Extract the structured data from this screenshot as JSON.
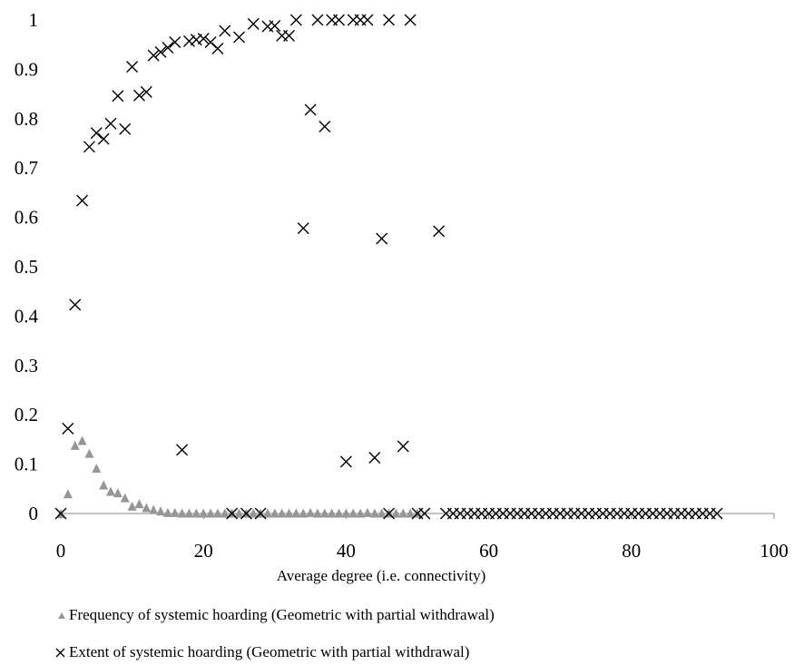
{
  "chart_data": {
    "type": "scatter",
    "xlabel": "Average degree (i.e. connectivity)",
    "ylabel": "",
    "xlim": [
      0,
      100
    ],
    "ylim": [
      0,
      1
    ],
    "x_ticks": [
      "0",
      "20",
      "40",
      "60",
      "80",
      "100"
    ],
    "y_ticks": [
      "0",
      "0.1",
      "0.2",
      "0.3",
      "0.4",
      "0.5",
      "0.6",
      "0.7",
      "0.8",
      "0.9",
      "1"
    ],
    "grid": false,
    "legend_position": "bottom",
    "series": [
      {
        "name": "Frequency of systemic hoarding (Geometric with partial withdrawal)",
        "marker": "triangle",
        "color": "#969696",
        "points": [
          [
            0,
            0
          ],
          [
            1,
            0.04
          ],
          [
            2,
            0.138
          ],
          [
            3,
            0.148
          ],
          [
            4,
            0.122
          ],
          [
            5,
            0.092
          ],
          [
            6,
            0.058
          ],
          [
            7,
            0.045
          ],
          [
            8,
            0.042
          ],
          [
            9,
            0.032
          ],
          [
            10,
            0.015
          ],
          [
            11,
            0.02
          ],
          [
            12,
            0.012
          ],
          [
            13,
            0.008
          ],
          [
            14,
            0.005
          ],
          [
            15,
            0.002
          ],
          [
            16,
            0.002
          ],
          [
            17,
            0.001
          ],
          [
            18,
            0.001
          ],
          [
            19,
            0.001
          ],
          [
            20,
            0.001
          ],
          [
            21,
            0.001
          ],
          [
            22,
            0.001
          ],
          [
            23,
            0.001
          ],
          [
            24,
            0.001
          ],
          [
            25,
            0.001
          ],
          [
            26,
            0.001
          ],
          [
            27,
            0.001
          ],
          [
            28,
            0.001
          ],
          [
            29,
            0.001
          ],
          [
            30,
            0.001
          ],
          [
            31,
            0.001
          ],
          [
            32,
            0.001
          ],
          [
            33,
            0.001
          ],
          [
            34,
            0.001
          ],
          [
            35,
            0.002
          ],
          [
            36,
            0.001
          ],
          [
            37,
            0.001
          ],
          [
            38,
            0.001
          ],
          [
            39,
            0.001
          ],
          [
            40,
            0.001
          ],
          [
            41,
            0.001
          ],
          [
            42,
            0.001
          ],
          [
            43,
            0.002
          ],
          [
            44,
            0.001
          ],
          [
            45,
            0.001
          ],
          [
            46,
            0.001
          ],
          [
            47,
            0.001
          ],
          [
            48,
            0.001
          ],
          [
            49,
            0.001
          ],
          [
            50,
            0.001
          ]
        ]
      },
      {
        "name": "Extent of systemic hoarding (Geometric with partial withdrawal)",
        "marker": "x",
        "color": "#000000",
        "points": [
          [
            0,
            0
          ],
          [
            1,
            0.172
          ],
          [
            2,
            0.423
          ],
          [
            3,
            0.634
          ],
          [
            4,
            0.743
          ],
          [
            5,
            0.771
          ],
          [
            6,
            0.759
          ],
          [
            7,
            0.79
          ],
          [
            8,
            0.846
          ],
          [
            9,
            0.779
          ],
          [
            10,
            0.905
          ],
          [
            11,
            0.847
          ],
          [
            12,
            0.854
          ],
          [
            13,
            0.928
          ],
          [
            14,
            0.935
          ],
          [
            15,
            0.944
          ],
          [
            16,
            0.955
          ],
          [
            17,
            0.129
          ],
          [
            18,
            0.957
          ],
          [
            19,
            0.96
          ],
          [
            20,
            0.962
          ],
          [
            21,
            0.955
          ],
          [
            22,
            0.942
          ],
          [
            23,
            0.978
          ],
          [
            24,
            0
          ],
          [
            25,
            0.965
          ],
          [
            26,
            0
          ],
          [
            27,
            0.992
          ],
          [
            28,
            0
          ],
          [
            29,
            0.987
          ],
          [
            30,
            0.988
          ],
          [
            31,
            0.968
          ],
          [
            32,
            0.968
          ],
          [
            33,
            1
          ],
          [
            34,
            0.578
          ],
          [
            35,
            0.818
          ],
          [
            36,
            1
          ],
          [
            37,
            0.784
          ],
          [
            38,
            1
          ],
          [
            39,
            1
          ],
          [
            40,
            0.105
          ],
          [
            41,
            1
          ],
          [
            42,
            1
          ],
          [
            43,
            1
          ],
          [
            44,
            0.113
          ],
          [
            45,
            0.557
          ],
          [
            46,
            0
          ],
          [
            46,
            1
          ],
          [
            48,
            0.136
          ],
          [
            49,
            1
          ],
          [
            50,
            0
          ],
          [
            51,
            0
          ],
          [
            53,
            0.572
          ],
          [
            54,
            0
          ],
          [
            55,
            0
          ],
          [
            56,
            0
          ],
          [
            57,
            0
          ],
          [
            58,
            0
          ],
          [
            59,
            0
          ],
          [
            60,
            0
          ],
          [
            61,
            0
          ],
          [
            62,
            0
          ],
          [
            63,
            0
          ],
          [
            64,
            0
          ],
          [
            65,
            0
          ],
          [
            66,
            0
          ],
          [
            67,
            0
          ],
          [
            68,
            0
          ],
          [
            69,
            0
          ],
          [
            70,
            0
          ],
          [
            71,
            0
          ],
          [
            72,
            0
          ],
          [
            73,
            0
          ],
          [
            74,
            0
          ],
          [
            75,
            0
          ],
          [
            76,
            0
          ],
          [
            77,
            0
          ],
          [
            78,
            0
          ],
          [
            79,
            0
          ],
          [
            80,
            0
          ],
          [
            81,
            0
          ],
          [
            82,
            0
          ],
          [
            83,
            0
          ],
          [
            84,
            0
          ],
          [
            85,
            0
          ],
          [
            86,
            0
          ],
          [
            87,
            0
          ],
          [
            88,
            0
          ],
          [
            89,
            0
          ],
          [
            90,
            0
          ],
          [
            91,
            0
          ],
          [
            92,
            0
          ]
        ]
      }
    ]
  }
}
